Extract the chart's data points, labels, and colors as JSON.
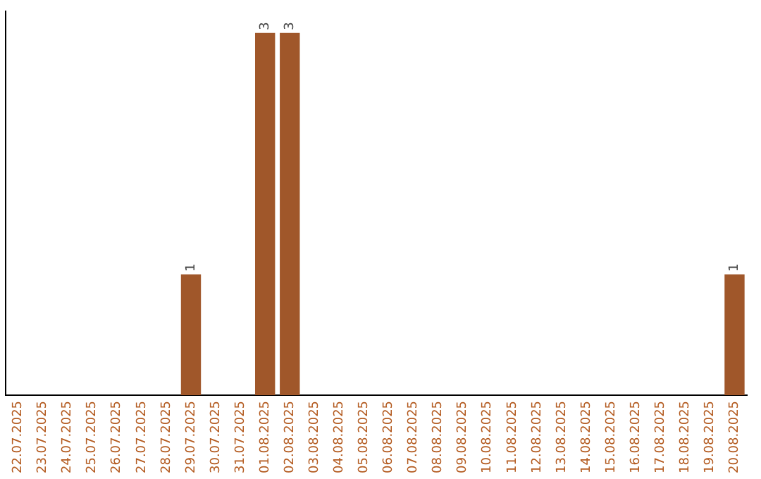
{
  "chart_data": {
    "type": "bar",
    "categories": [
      "22.07.2025",
      "23.07.2025",
      "24.07.2025",
      "25.07.2025",
      "26.07.2025",
      "27.07.2025",
      "28.07.2025",
      "29.07.2025",
      "30.07.2025",
      "31.07.2025",
      "01.08.2025",
      "02.08.2025",
      "03.08.2025",
      "04.08.2025",
      "05.08.2025",
      "06.08.2025",
      "07.08.2025",
      "08.08.2025",
      "09.08.2025",
      "10.08.2025",
      "11.08.2025",
      "12.08.2025",
      "13.08.2025",
      "14.08.2025",
      "15.08.2025",
      "16.08.2025",
      "17.08.2025",
      "18.08.2025",
      "19.08.2025",
      "20.08.2025"
    ],
    "values": [
      0,
      0,
      0,
      0,
      0,
      0,
      0,
      1,
      0,
      0,
      3,
      3,
      0,
      0,
      0,
      0,
      0,
      0,
      0,
      0,
      0,
      0,
      0,
      0,
      0,
      0,
      0,
      0,
      0,
      1
    ],
    "value_labels": [
      null,
      null,
      null,
      null,
      null,
      null,
      null,
      "1",
      null,
      null,
      "3",
      "3",
      null,
      null,
      null,
      null,
      null,
      null,
      null,
      null,
      null,
      null,
      null,
      null,
      null,
      null,
      null,
      null,
      null,
      "1"
    ],
    "color": "#a0572a",
    "grid": false,
    "legend": false
  }
}
